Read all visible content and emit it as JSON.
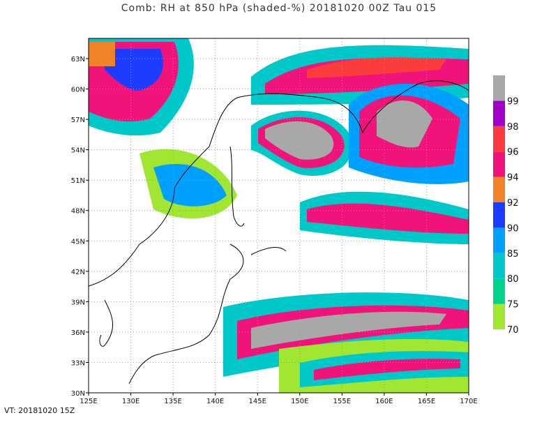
{
  "title": "Comb: RH at 850 hPa (shaded-%) 20181020 00Z Tau 015",
  "map": {
    "lon_range": [
      125,
      170
    ],
    "lat_range": [
      30,
      65
    ],
    "lon_ticks": [
      {
        "value": 125,
        "label": "125E"
      },
      {
        "value": 130,
        "label": "130E"
      },
      {
        "value": 135,
        "label": "135E"
      },
      {
        "value": 140,
        "label": "140E"
      },
      {
        "value": 145,
        "label": "145E"
      },
      {
        "value": 150,
        "label": "150E"
      },
      {
        "value": 155,
        "label": "155E"
      },
      {
        "value": 160,
        "label": "160E"
      },
      {
        "value": 165,
        "label": "165E"
      },
      {
        "value": 170,
        "label": "170E"
      }
    ],
    "lat_ticks": [
      {
        "value": 30,
        "label": "30N"
      },
      {
        "value": 33,
        "label": "33N"
      },
      {
        "value": 36,
        "label": "36N"
      },
      {
        "value": 39,
        "label": "39N"
      },
      {
        "value": 42,
        "label": "42N"
      },
      {
        "value": 45,
        "label": "45N"
      },
      {
        "value": 48,
        "label": "48N"
      },
      {
        "value": 51,
        "label": "51N"
      },
      {
        "value": 54,
        "label": "54N"
      },
      {
        "value": 57,
        "label": "57N"
      },
      {
        "value": 60,
        "label": "60N"
      },
      {
        "value": 63,
        "label": "63N"
      }
    ],
    "colorbar": {
      "levels": [
        70,
        75,
        80,
        85,
        90,
        92,
        94,
        96,
        98,
        99
      ],
      "colors": [
        "#a0e632",
        "#00d28c",
        "#00c8c8",
        "#00a0ff",
        "#1e3cff",
        "#f08228",
        "#f0147a",
        "#fa3c3c",
        "#a000c8",
        "#a8a8a8"
      ]
    }
  },
  "footer": "VT: 20181020 15Z"
}
